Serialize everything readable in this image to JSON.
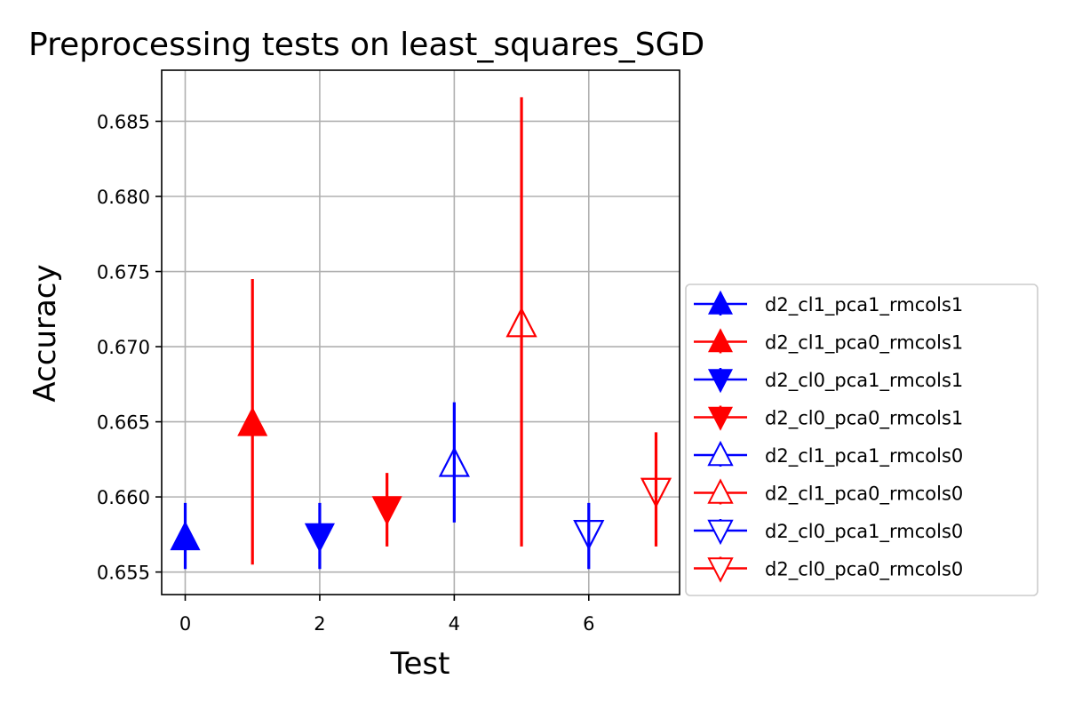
{
  "chart_data": {
    "type": "scatter",
    "title": "Preprocessing tests on least_squares_SGD",
    "xlabel": "Test",
    "ylabel": "Accuracy",
    "xlim": [
      -0.35,
      7.35
    ],
    "ylim": [
      0.6535,
      0.6884
    ],
    "xticks": [
      "0",
      "2",
      "4",
      "6"
    ],
    "xtick_values": [
      0,
      2,
      4,
      6
    ],
    "yticks": [
      "0.655",
      "0.660",
      "0.665",
      "0.670",
      "0.675",
      "0.680",
      "0.685"
    ],
    "ytick_values": [
      0.655,
      0.66,
      0.665,
      0.67,
      0.675,
      0.68,
      0.685
    ],
    "grid": true,
    "legend_placement": "right, outside plot",
    "series": [
      {
        "name": "d2_cl1_pca1_rmcols1",
        "x": 0,
        "y": 0.6573,
        "err_low": 0.6552,
        "err_high": 0.6596,
        "color": "#0000ff",
        "marker": "triangle-up",
        "filled": true
      },
      {
        "name": "d2_cl1_pca0_rmcols1",
        "x": 1,
        "y": 0.6649,
        "err_low": 0.6555,
        "err_high": 0.6745,
        "color": "#ff0000",
        "marker": "triangle-up",
        "filled": true
      },
      {
        "name": "d2_cl0_pca1_rmcols1",
        "x": 2,
        "y": 0.6574,
        "err_low": 0.6552,
        "err_high": 0.6596,
        "color": "#0000ff",
        "marker": "triangle-down",
        "filled": true
      },
      {
        "name": "d2_cl0_pca0_rmcols1",
        "x": 3,
        "y": 0.6592,
        "err_low": 0.6567,
        "err_high": 0.6616,
        "color": "#ff0000",
        "marker": "triangle-down",
        "filled": true
      },
      {
        "name": "d2_cl1_pca1_rmcols0",
        "x": 4,
        "y": 0.6622,
        "err_low": 0.6583,
        "err_high": 0.6663,
        "color": "#0000ff",
        "marker": "triangle-up",
        "filled": false
      },
      {
        "name": "d2_cl1_pca0_rmcols0",
        "x": 5,
        "y": 0.6715,
        "err_low": 0.6567,
        "err_high": 0.6866,
        "color": "#ff0000",
        "marker": "triangle-up",
        "filled": false
      },
      {
        "name": "d2_cl0_pca1_rmcols0",
        "x": 6,
        "y": 0.6576,
        "err_low": 0.6552,
        "err_high": 0.6596,
        "color": "#0000ff",
        "marker": "triangle-down",
        "filled": false
      },
      {
        "name": "d2_cl0_pca0_rmcols0",
        "x": 7,
        "y": 0.6604,
        "err_low": 0.6567,
        "err_high": 0.6643,
        "color": "#ff0000",
        "marker": "triangle-down",
        "filled": false
      }
    ]
  }
}
